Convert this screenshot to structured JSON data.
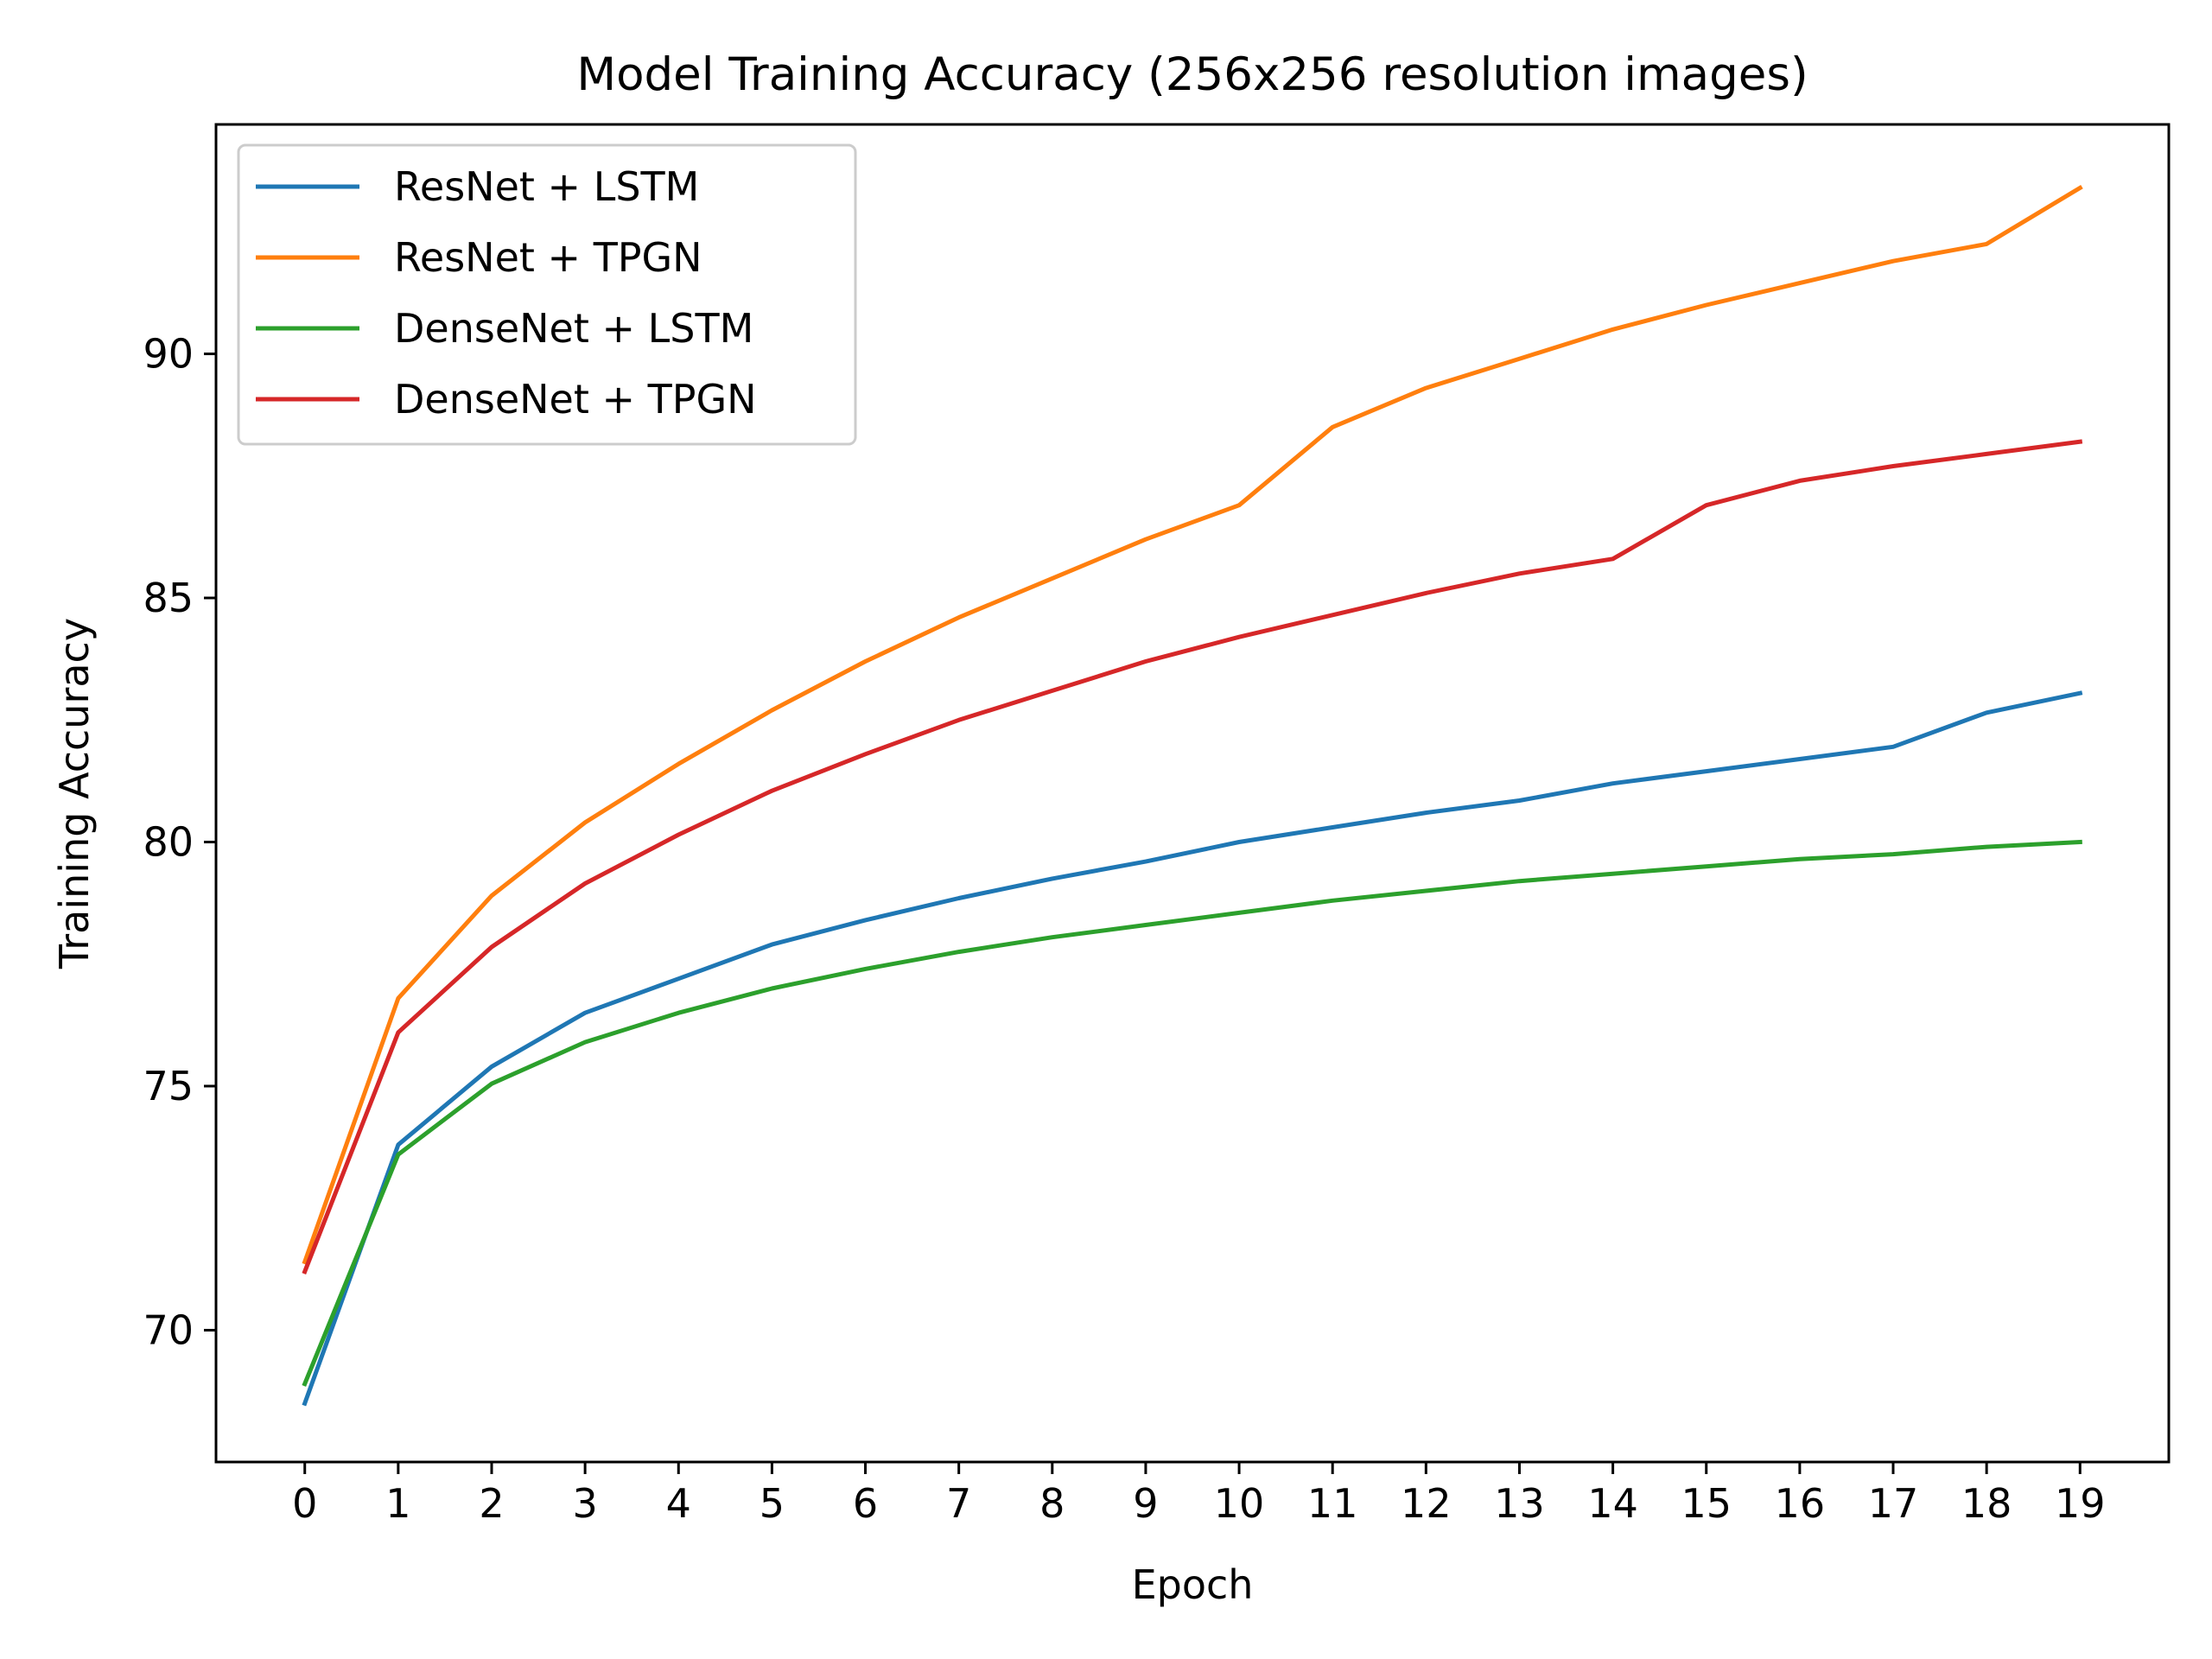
{
  "chart_data": {
    "type": "line",
    "title": "Model Training Accuracy (256x256 resolution images)",
    "xlabel": "Epoch",
    "ylabel": "Training Accuracy",
    "x": [
      0,
      1,
      2,
      3,
      4,
      5,
      6,
      7,
      8,
      9,
      10,
      11,
      12,
      13,
      14,
      15,
      16,
      17,
      18,
      19
    ],
    "xlim": [
      -0.95,
      19.95
    ],
    "ylim": [
      67.3,
      94.7
    ],
    "xticks": [
      0,
      1,
      2,
      3,
      4,
      5,
      6,
      7,
      8,
      9,
      10,
      11,
      12,
      13,
      14,
      15,
      16,
      17,
      18,
      19
    ],
    "yticks": [
      70,
      75,
      80,
      85,
      90
    ],
    "grid": false,
    "legend_position": "top-left",
    "series": [
      {
        "name": "ResNet + LSTM",
        "color": "#1f77b4",
        "values": [
          68.5,
          73.8,
          75.4,
          76.5,
          77.2,
          77.9,
          78.4,
          78.85,
          79.25,
          79.6,
          80.0,
          80.3,
          80.6,
          80.85,
          81.2,
          81.45,
          81.7,
          81.95,
          82.65,
          83.05
        ]
      },
      {
        "name": "ResNet + TPGN",
        "color": "#ff7f0e",
        "values": [
          71.4,
          76.8,
          78.9,
          80.4,
          81.6,
          82.7,
          83.7,
          84.6,
          85.4,
          86.2,
          86.9,
          88.5,
          89.3,
          89.9,
          90.5,
          91.0,
          91.45,
          91.9,
          92.25,
          93.4
        ]
      },
      {
        "name": "DenseNet + LSTM",
        "color": "#2ca02c",
        "values": [
          68.9,
          73.6,
          75.05,
          75.9,
          76.5,
          77.0,
          77.4,
          77.75,
          78.05,
          78.3,
          78.55,
          78.8,
          79.0,
          79.2,
          79.35,
          79.5,
          79.65,
          79.75,
          79.9,
          80.0
        ]
      },
      {
        "name": "DenseNet + TPGN",
        "color": "#d62728",
        "values": [
          71.2,
          76.1,
          77.85,
          79.15,
          80.15,
          81.05,
          81.8,
          82.5,
          83.1,
          83.7,
          84.2,
          84.65,
          85.1,
          85.5,
          85.8,
          86.9,
          87.4,
          87.7,
          87.95,
          88.2
        ]
      }
    ]
  }
}
